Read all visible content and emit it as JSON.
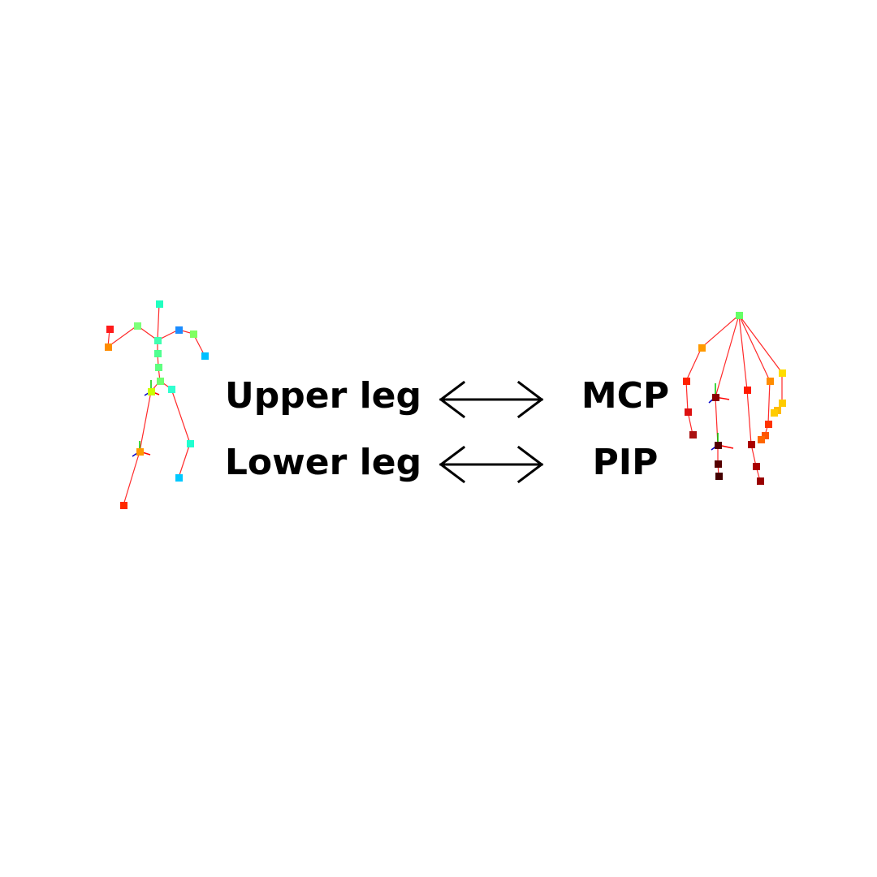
{
  "mappings": [
    {
      "left": "Upper leg",
      "right": "MCP"
    },
    {
      "left": "Lower leg",
      "right": "PIP"
    }
  ],
  "colors": {
    "bone": "#ff2a2a",
    "text": "#000000",
    "arrow": "#000000"
  },
  "icons": {
    "left_figure": "body-skeleton-icon",
    "right_figure": "hand-skeleton-icon",
    "arrow": "double-arrow-icon"
  }
}
